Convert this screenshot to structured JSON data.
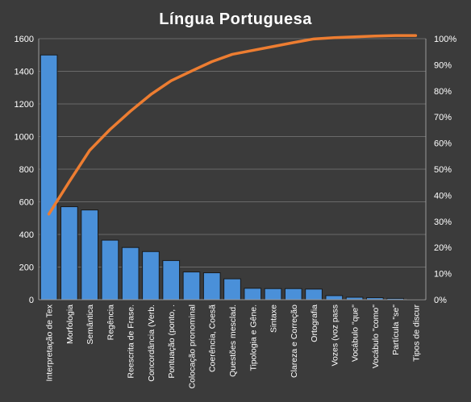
{
  "chart_data": {
    "type": "bar",
    "title": "Língua  Portuguesa",
    "categories": [
      "Interpretação de Tex",
      "Morfologia",
      "Semântica",
      "Regência",
      "Reescrita de Frase.",
      "Concordância (Verb.",
      "Pontuação (ponto, .",
      "Colocação pronominal",
      "Coerência, Coesã",
      "Questões mesclad.",
      "Tipologia e Gêne.",
      "Sintaxe",
      "Clareza e Correção",
      "Ortografia",
      "Vozes (voz pass",
      "Vocábulo \"que\"",
      "Vocábulo \"como\"",
      "Partícula \"se\"",
      "Tipos de discur"
    ],
    "series": [
      {
        "type": "bar",
        "axis": "left",
        "color": "#4a90d9",
        "values": [
          1500,
          570,
          550,
          365,
          320,
          295,
          240,
          170,
          165,
          128,
          70,
          68,
          68,
          65,
          25,
          15,
          12,
          8,
          3
        ]
      },
      {
        "type": "line",
        "axis": "right",
        "color": "#ed7d31",
        "values": [
          32.8,
          45.2,
          57.2,
          65.2,
          72.2,
          78.6,
          83.9,
          87.6,
          91.2,
          94.0,
          95.5,
          97.0,
          98.5,
          99.9,
          100.4,
          100.7,
          101.0,
          101.2,
          101.2
        ]
      }
    ],
    "ylim": [
      0,
      1600
    ],
    "yticks": [
      "0",
      "200",
      "400",
      "600",
      "800",
      "1000",
      "1200",
      "1400",
      "1600"
    ],
    "y2lim": [
      0,
      100
    ],
    "y2ticks": [
      "0%",
      "10%",
      "20%",
      "30%",
      "40%",
      "50%",
      "60%",
      "70%",
      "80%",
      "90%",
      "100%"
    ],
    "grid": true,
    "legend": "none"
  }
}
